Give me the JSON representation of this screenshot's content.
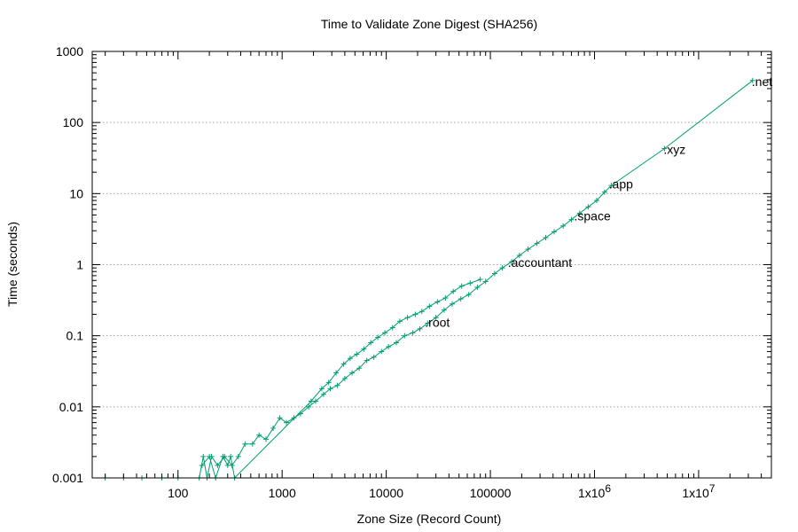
{
  "chart_data": {
    "type": "scatter",
    "title": "Time to Validate Zone Digest (SHA256)",
    "xlabel": "Zone Size (Record Count)",
    "ylabel": "Time (seconds)",
    "x_scale": "log",
    "y_scale": "log",
    "xlim": [
      15,
      50000000
    ],
    "ylim": [
      0.001,
      1000
    ],
    "grid": "y-major",
    "legend": "none",
    "series_color": "#009e73",
    "x_ticks": [
      {
        "value": 100,
        "label": "100"
      },
      {
        "value": 1000,
        "label": "1000"
      },
      {
        "value": 10000,
        "label": "10000"
      },
      {
        "value": 100000,
        "label": "100000"
      },
      {
        "value": 1000000,
        "label": "1x10",
        "exp": "6"
      },
      {
        "value": 10000000,
        "label": "1x10",
        "exp": "7"
      }
    ],
    "y_ticks": [
      {
        "value": 0.001,
        "label": "0.001"
      },
      {
        "value": 0.01,
        "label": "0.01"
      },
      {
        "value": 0.1,
        "label": "0.1"
      },
      {
        "value": 1,
        "label": "1"
      },
      {
        "value": 10,
        "label": "10"
      },
      {
        "value": 100,
        "label": "100"
      },
      {
        "value": 1000,
        "label": "1000"
      }
    ],
    "annotations": [
      {
        "text": ".root",
        "x": 24000,
        "y": 0.16
      },
      {
        "text": ".accountant",
        "x": 150000,
        "y": 1.1
      },
      {
        "text": ".space",
        "x": 650000,
        "y": 5.0
      },
      {
        "text": ".app",
        "x": 1400000,
        "y": 14
      },
      {
        "text": ".xyz",
        "x": 4700000,
        "y": 43
      },
      {
        "text": ".net",
        "x": 33000000,
        "y": 390
      }
    ],
    "series": [
      {
        "x": [
          20,
          30,
          45,
          70,
          100,
          160,
          175,
          190,
          210,
          240,
          280,
          330,
          380,
          440,
          520,
          600,
          700,
          820,
          950,
          1100,
          1300,
          1500,
          1800,
          2100,
          2500,
          2900,
          3400,
          4000,
          4700,
          5500,
          6500,
          7600,
          9000,
          10500,
          12500,
          15000,
          18000,
          21000,
          25000,
          30000,
          36000,
          43000,
          52000,
          62000,
          75000,
          90000,
          110000,
          130000,
          160000,
          190000,
          230000,
          280000,
          340000,
          410000,
          500000,
          600000,
          720000,
          870000,
          1050000,
          1250000,
          1450000,
          4700000,
          33000000
        ],
        "y": [
          0.001,
          0.001,
          0.001,
          0.001,
          0.001,
          0.001,
          0.002,
          0.001,
          0.002,
          0.0015,
          0.002,
          0.0015,
          0.002,
          0.003,
          0.003,
          0.004,
          0.0035,
          0.005,
          0.007,
          0.006,
          0.007,
          0.008,
          0.01,
          0.012,
          0.015,
          0.018,
          0.02,
          0.025,
          0.03,
          0.035,
          0.045,
          0.05,
          0.06,
          0.07,
          0.08,
          0.1,
          0.11,
          0.125,
          0.15,
          0.18,
          0.23,
          0.28,
          0.33,
          0.38,
          0.48,
          0.58,
          0.75,
          0.9,
          1.1,
          1.35,
          1.65,
          2.0,
          2.4,
          2.9,
          3.5,
          4.3,
          5.3,
          6.5,
          8.0,
          10.5,
          13.0,
          43.0,
          390.0
        ]
      },
      {
        "x": [
          170,
          200,
          230,
          270,
          300,
          320,
          350,
          1900,
          2400,
          2800,
          3300,
          3900,
          4500,
          5200,
          6100,
          7100,
          8300,
          9700,
          11500,
          13500,
          16000,
          19000,
          22000,
          26000,
          31000,
          37000,
          44000,
          53000,
          64000,
          80000
        ],
        "y": [
          0.0015,
          0.002,
          0.001,
          0.002,
          0.0015,
          0.002,
          0.001,
          0.012,
          0.018,
          0.022,
          0.03,
          0.04,
          0.048,
          0.055,
          0.065,
          0.08,
          0.095,
          0.11,
          0.13,
          0.16,
          0.18,
          0.2,
          0.22,
          0.26,
          0.3,
          0.34,
          0.42,
          0.5,
          0.55,
          0.62
        ]
      }
    ]
  }
}
